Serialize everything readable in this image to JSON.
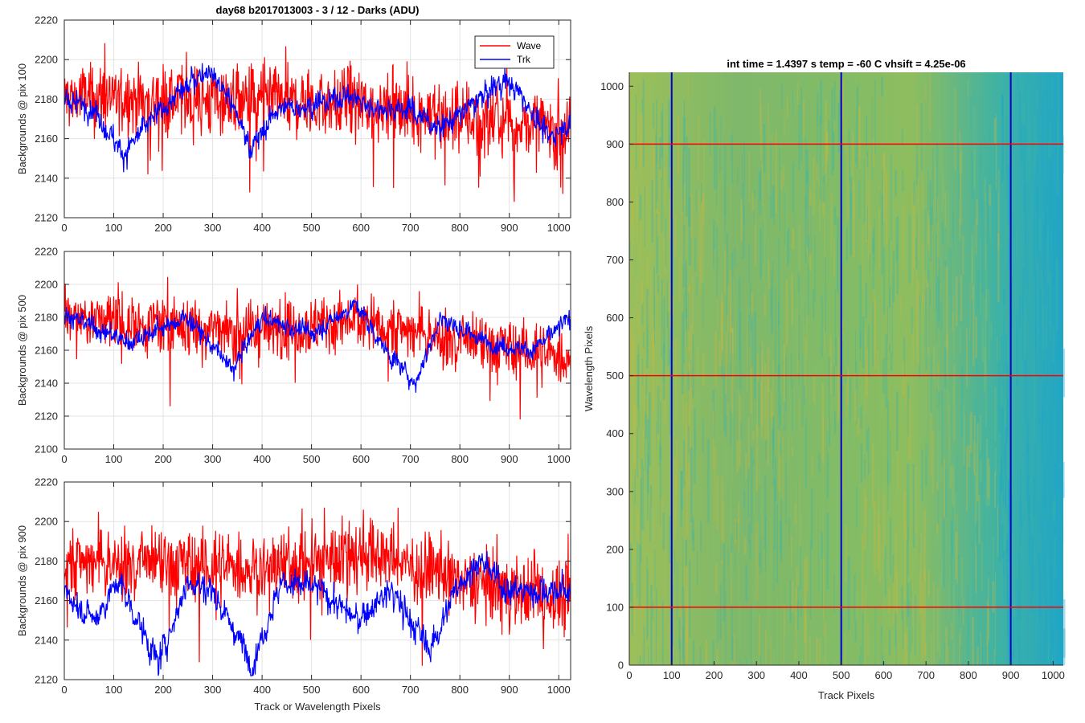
{
  "chart_data": [
    {
      "type": "line",
      "panel": "top-left",
      "title": "day68 b2017013003 - 3 / 12 - Darks (ADU)",
      "xlabel": "",
      "ylabel": "Backgrounds @ pix 100",
      "xlim": [
        0,
        1024
      ],
      "ylim": [
        2120,
        2220
      ],
      "xticks": [
        0,
        100,
        200,
        300,
        400,
        500,
        600,
        700,
        800,
        900,
        1000
      ],
      "yticks": [
        2120,
        2140,
        2160,
        2180,
        2200,
        2220
      ],
      "grid": true,
      "legend": {
        "position": "top-right",
        "entries": [
          "Wave",
          "Trk"
        ]
      },
      "series": [
        {
          "name": "Wave",
          "color": "#ff0000",
          "mean": 2178,
          "noise": 9,
          "min": 2128,
          "max": 2220,
          "trend": [
            [
              0,
              2181
            ],
            [
              200,
              2180
            ],
            [
              400,
              2179
            ],
            [
              600,
              2177
            ],
            [
              800,
              2170
            ],
            [
              1024,
              2165
            ]
          ]
        },
        {
          "name": "Trk",
          "color": "#0000ff",
          "mean": 2175,
          "noise": 4,
          "min": 2143,
          "max": 2202,
          "trend": [
            [
              0,
              2180
            ],
            [
              60,
              2175
            ],
            [
              120,
              2152
            ],
            [
              170,
              2168
            ],
            [
              220,
              2180
            ],
            [
              290,
              2196
            ],
            [
              330,
              2182
            ],
            [
              380,
              2155
            ],
            [
              430,
              2175
            ],
            [
              520,
              2178
            ],
            [
              570,
              2182
            ],
            [
              620,
              2176
            ],
            [
              700,
              2175
            ],
            [
              760,
              2165
            ],
            [
              830,
              2178
            ],
            [
              890,
              2190
            ],
            [
              930,
              2180
            ],
            [
              980,
              2160
            ],
            [
              1024,
              2170
            ]
          ]
        }
      ]
    },
    {
      "type": "line",
      "panel": "middle-left",
      "title": "",
      "xlabel": "",
      "ylabel": "Backgrounds @ pix 500",
      "xlim": [
        0,
        1024
      ],
      "ylim": [
        2100,
        2220
      ],
      "xticks": [
        0,
        100,
        200,
        300,
        400,
        500,
        600,
        700,
        800,
        900,
        1000
      ],
      "yticks": [
        2100,
        2120,
        2140,
        2160,
        2180,
        2200,
        2220
      ],
      "grid": true,
      "series": [
        {
          "name": "Wave",
          "color": "#ff0000",
          "mean": 2175,
          "noise": 9,
          "min": 2118,
          "max": 2205,
          "trend": [
            [
              0,
              2180
            ],
            [
              200,
              2175
            ],
            [
              400,
              2172
            ],
            [
              600,
              2178
            ],
            [
              800,
              2165
            ],
            [
              1024,
              2155
            ]
          ]
        },
        {
          "name": "Trk",
          "color": "#0000ff",
          "mean": 2168,
          "noise": 4,
          "min": 2133,
          "max": 2195,
          "trend": [
            [
              0,
              2182
            ],
            [
              130,
              2165
            ],
            [
              250,
              2180
            ],
            [
              340,
              2148
            ],
            [
              400,
              2180
            ],
            [
              500,
              2170
            ],
            [
              590,
              2188
            ],
            [
              650,
              2160
            ],
            [
              710,
              2140
            ],
            [
              760,
              2180
            ],
            [
              850,
              2165
            ],
            [
              950,
              2160
            ],
            [
              1024,
              2180
            ]
          ]
        }
      ]
    },
    {
      "type": "line",
      "panel": "bottom-left",
      "title": "",
      "xlabel": "Track or Wavelength Pixels",
      "ylabel": "Backgrounds @ pix 900",
      "xlim": [
        0,
        1024
      ],
      "ylim": [
        2120,
        2220
      ],
      "xticks": [
        0,
        100,
        200,
        300,
        400,
        500,
        600,
        700,
        800,
        900,
        1000
      ],
      "yticks": [
        2120,
        2140,
        2160,
        2180,
        2200,
        2220
      ],
      "grid": true,
      "series": [
        {
          "name": "Wave",
          "color": "#ff0000",
          "mean": 2178,
          "noise": 9,
          "min": 2127,
          "max": 2207,
          "trend": [
            [
              0,
              2180
            ],
            [
              200,
              2178
            ],
            [
              400,
              2176
            ],
            [
              600,
              2185
            ],
            [
              800,
              2170
            ],
            [
              1024,
              2160
            ]
          ]
        },
        {
          "name": "Trk",
          "color": "#0000ff",
          "mean": 2158,
          "noise": 5,
          "min": 2122,
          "max": 2185,
          "trend": [
            [
              0,
              2165
            ],
            [
              60,
              2150
            ],
            [
              110,
              2170
            ],
            [
              190,
              2128
            ],
            [
              250,
              2170
            ],
            [
              300,
              2165
            ],
            [
              380,
              2128
            ],
            [
              440,
              2170
            ],
            [
              520,
              2165
            ],
            [
              590,
              2150
            ],
            [
              660,
              2165
            ],
            [
              740,
              2135
            ],
            [
              800,
              2170
            ],
            [
              840,
              2180
            ],
            [
              900,
              2165
            ],
            [
              1024,
              2165
            ]
          ]
        }
      ]
    },
    {
      "type": "heatmap",
      "panel": "right",
      "title": "int time = 1.4397 s    temp = -60 C    vhsift = 4.25e-06",
      "xlabel": "Track Pixels",
      "ylabel": "Wavelength Pixels",
      "xlim": [
        0,
        1024
      ],
      "ylim": [
        0,
        1024
      ],
      "xticks": [
        0,
        100,
        200,
        300,
        400,
        500,
        600,
        700,
        800,
        900,
        1000
      ],
      "yticks": [
        0,
        100,
        200,
        300,
        400,
        500,
        600,
        700,
        800,
        900,
        1000
      ],
      "colormap": [
        "#1ea6c8",
        "#3db5a8",
        "#86c06a",
        "#c8b742"
      ],
      "description_values": {
        "left_region": "yellow-green",
        "right_region": "cyan"
      },
      "vertical_lines": {
        "x": [
          100,
          500,
          900
        ],
        "color": "#0000cc"
      },
      "horizontal_lines": {
        "y": [
          100,
          500,
          900
        ],
        "color": "#ff0000"
      }
    }
  ]
}
